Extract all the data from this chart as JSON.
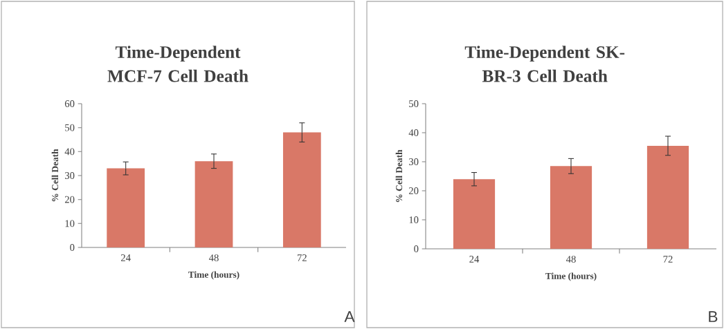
{
  "chart_data": [
    {
      "type": "bar",
      "title": "Time-Dependent MCF-7 Cell Death",
      "xlabel": "Time (hours)",
      "ylabel": "% Cell Death",
      "categories": [
        "24",
        "48",
        "72"
      ],
      "values": [
        33,
        36,
        48
      ],
      "errors": [
        2.7,
        3,
        4
      ],
      "color": "#d97867",
      "ylim": [
        0,
        60
      ],
      "yticks": [
        0,
        10,
        20,
        30,
        40,
        50,
        60
      ],
      "annotations": [
        "A"
      ]
    },
    {
      "type": "bar",
      "title": "Time-Dependent SK-BR-3 Cell Death",
      "xlabel": "Time (hours)",
      "ylabel": "% Cell Death",
      "categories": [
        "24",
        "48",
        "72"
      ],
      "values": [
        24,
        28.5,
        35.5
      ],
      "errors": [
        2.3,
        2.6,
        3.3
      ],
      "color": "#d97867",
      "ylim": [
        0,
        50
      ],
      "yticks": [
        0,
        10,
        20,
        30,
        40,
        50
      ],
      "annotations": [
        "B"
      ]
    }
  ]
}
